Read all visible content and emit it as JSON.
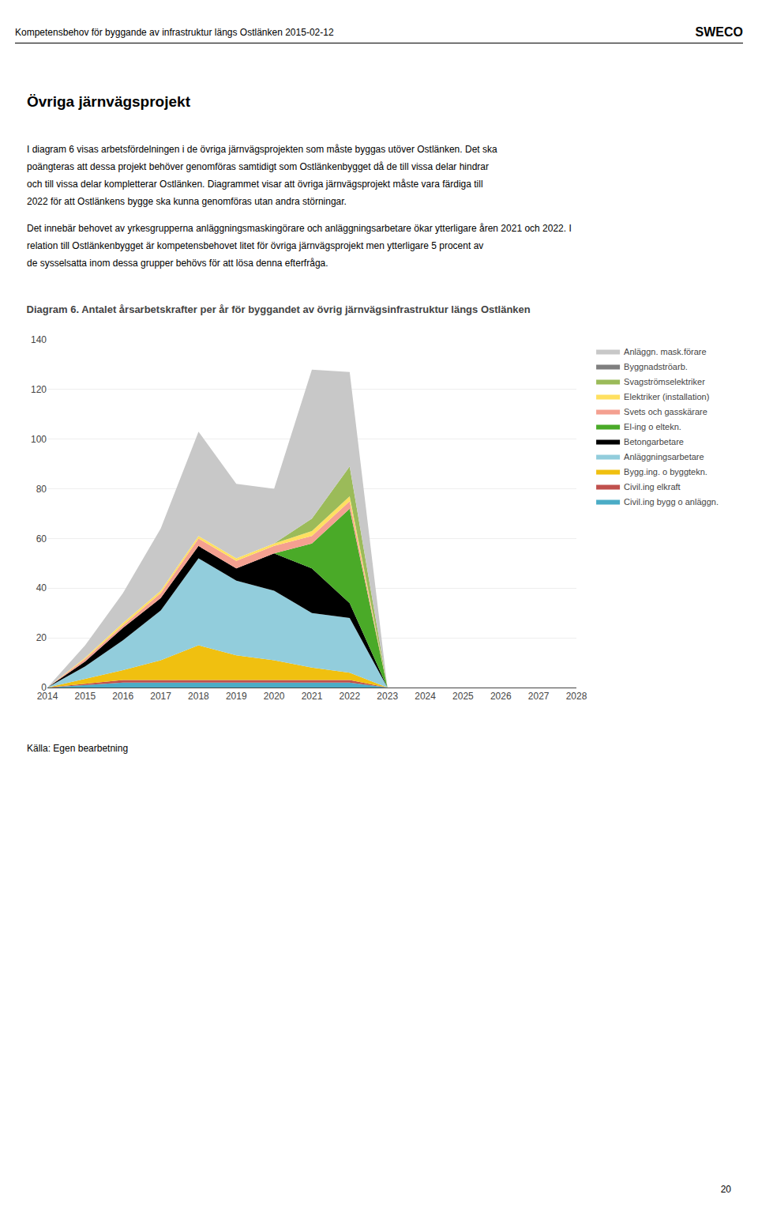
{
  "chart_data": {
    "type": "area",
    "stacked": true,
    "title": "Diagram 6. Antalet årsarbetskrafter per år för byggandet av övrig järnvägsinfrastruktur längs Ostlänken",
    "annotations": [
      "Kompetensbehov för byggande av infrastruktur längs Ostlänken 2015-02-12",
      "SWECO",
      "Övriga järnvägsprojekt",
      "I diagram 6 visas arbetsfördelningen i de övriga järnvägsprojekten som måste byggas utöver Ostlänken. Det ska",
      "poängteras att dessa projekt behöver genomföras samtidigt som Ostlänkenbygget då de till vissa delar hindrar",
      "och till vissa delar kompletterar Ostlänken. Diagrammet visar att övriga järnvägsprojekt måste vara färdiga till",
      "2022 för att Ostlänkens bygge ska kunna genomföras utan andra störningar.",
      "Det innebär behovet av yrkesgrupperna anläggningsmaskingörare och anläggningsarbetare ökar ytterligare åren 2021 och 2022. I",
      "relation till Ostlänkenbygget är kompetensbehovet litet för övriga järnvägsprojekt men ytterligare 5 procent av",
      "de sysselsatta inom dessa grupper behövs för att lösa denna efterfråga.",
      "Källa: Egen bearbetning",
      "20"
    ],
    "x": [
      2014,
      2015,
      2016,
      2017,
      2018,
      2019,
      2020,
      2021,
      2022,
      2023,
      2024,
      2025,
      2026,
      2027,
      2028
    ],
    "xlim": [
      2014,
      2028
    ],
    "xticks": [
      2014,
      2015,
      2016,
      2017,
      2018,
      2019,
      2020,
      2021,
      2022,
      2023,
      2024,
      2025,
      2026,
      2027,
      2028
    ],
    "ylim": [
      0,
      140
    ],
    "yticks": [
      0,
      20,
      40,
      60,
      80,
      100,
      120,
      140
    ],
    "grid": true,
    "legend": "right",
    "series": [
      {
        "name": "Civil.ing bygg o anläggn.",
        "color": "#4bacc6",
        "values": [
          0,
          1,
          2,
          2,
          2,
          2,
          2,
          2,
          2,
          0,
          0,
          0,
          0,
          0,
          0
        ]
      },
      {
        "name": "Civil.ing elkraft",
        "color": "#c0504d",
        "values": [
          0,
          0.5,
          1,
          1,
          1,
          1,
          1,
          1,
          1,
          0,
          0,
          0,
          0,
          0,
          0
        ]
      },
      {
        "name": "Bygg.ing. o byggtekn.",
        "color": "#f0c010",
        "values": [
          0,
          2,
          4,
          8,
          14,
          10,
          8,
          5,
          3,
          0,
          0,
          0,
          0,
          0,
          0
        ]
      },
      {
        "name": "Anläggningsarbetare",
        "color": "#92cddc",
        "values": [
          0,
          5,
          12,
          20,
          35,
          30,
          28,
          22,
          22,
          0,
          0,
          0,
          0,
          0,
          0
        ]
      },
      {
        "name": "Betongarbetare",
        "color": "#000000",
        "values": [
          0,
          2,
          5,
          5,
          5,
          5,
          15,
          18,
          6,
          0,
          0,
          0,
          0,
          0,
          0
        ]
      },
      {
        "name": "El-ing o eltekn.",
        "color": "#4aaa28",
        "values": [
          0,
          0,
          0,
          0,
          0,
          0,
          0,
          10,
          38,
          0,
          0,
          0,
          0,
          0,
          0
        ]
      },
      {
        "name": "Svets och gasskärare",
        "color": "#f4a090",
        "values": [
          0,
          1,
          1,
          2,
          3,
          3,
          3,
          3,
          3,
          0,
          0,
          0,
          0,
          0,
          0
        ]
      },
      {
        "name": "Elektriker (installation)",
        "color": "#ffe060",
        "values": [
          0,
          0.5,
          1,
          1,
          1,
          1,
          1,
          2,
          2,
          0,
          0,
          0,
          0,
          0,
          0
        ]
      },
      {
        "name": "Svagströmselektriker",
        "color": "#9bbb59",
        "values": [
          0,
          0,
          0,
          0,
          0,
          0,
          0,
          5,
          12,
          0,
          0,
          0,
          0,
          0,
          0
        ]
      },
      {
        "name": "Byggnadströarb.",
        "color": "#7f7f7f",
        "values": [
          0,
          0,
          0,
          0,
          0,
          0,
          0,
          0,
          0,
          0,
          0,
          0,
          0,
          0,
          0
        ]
      },
      {
        "name": "Anläggn. mask.förare",
        "color": "#c8c8c8",
        "values": [
          0,
          5,
          12,
          25,
          42,
          30,
          22,
          60,
          38,
          0,
          0,
          0,
          0,
          0,
          0
        ]
      }
    ]
  }
}
